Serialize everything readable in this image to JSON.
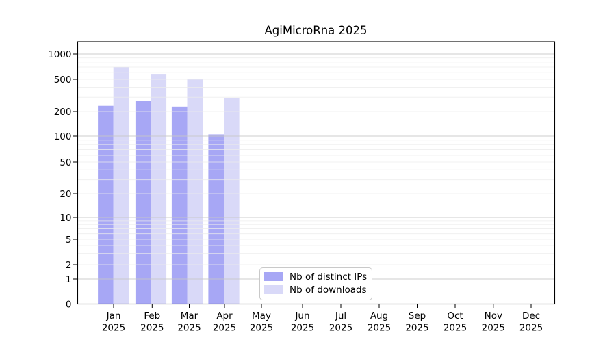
{
  "chart_data": {
    "type": "bar",
    "title": "AgiMicroRna 2025",
    "categories": [
      "Jan",
      "Feb",
      "Mar",
      "Apr",
      "May",
      "Jun",
      "Jul",
      "Aug",
      "Sep",
      "Oct",
      "Nov",
      "Dec"
    ],
    "x_tick_second_line": "2025",
    "series": [
      {
        "name": "Nb of distinct IPs",
        "color": "#a7a7f5",
        "values": [
          235,
          270,
          230,
          105,
          0,
          0,
          0,
          0,
          0,
          0,
          0,
          0
        ]
      },
      {
        "name": "Nb of downloads",
        "color": "#d9d9f8",
        "values": [
          700,
          580,
          500,
          290,
          0,
          0,
          0,
          0,
          0,
          0,
          0,
          0
        ]
      }
    ],
    "y_ticks": [
      0,
      1,
      2,
      5,
      10,
      20,
      50,
      100,
      200,
      500,
      1000
    ],
    "ylim": [
      0,
      1000
    ],
    "xlabel": "",
    "ylabel": "",
    "grid": "horizontal, log major and minor lines drawn over bars",
    "legend_position": "bottom-center-inside",
    "colors": {
      "grid_major": "#c6c6c6",
      "grid_minor": "#ebebeb",
      "axis": "#000000",
      "background": "#ffffff"
    }
  }
}
